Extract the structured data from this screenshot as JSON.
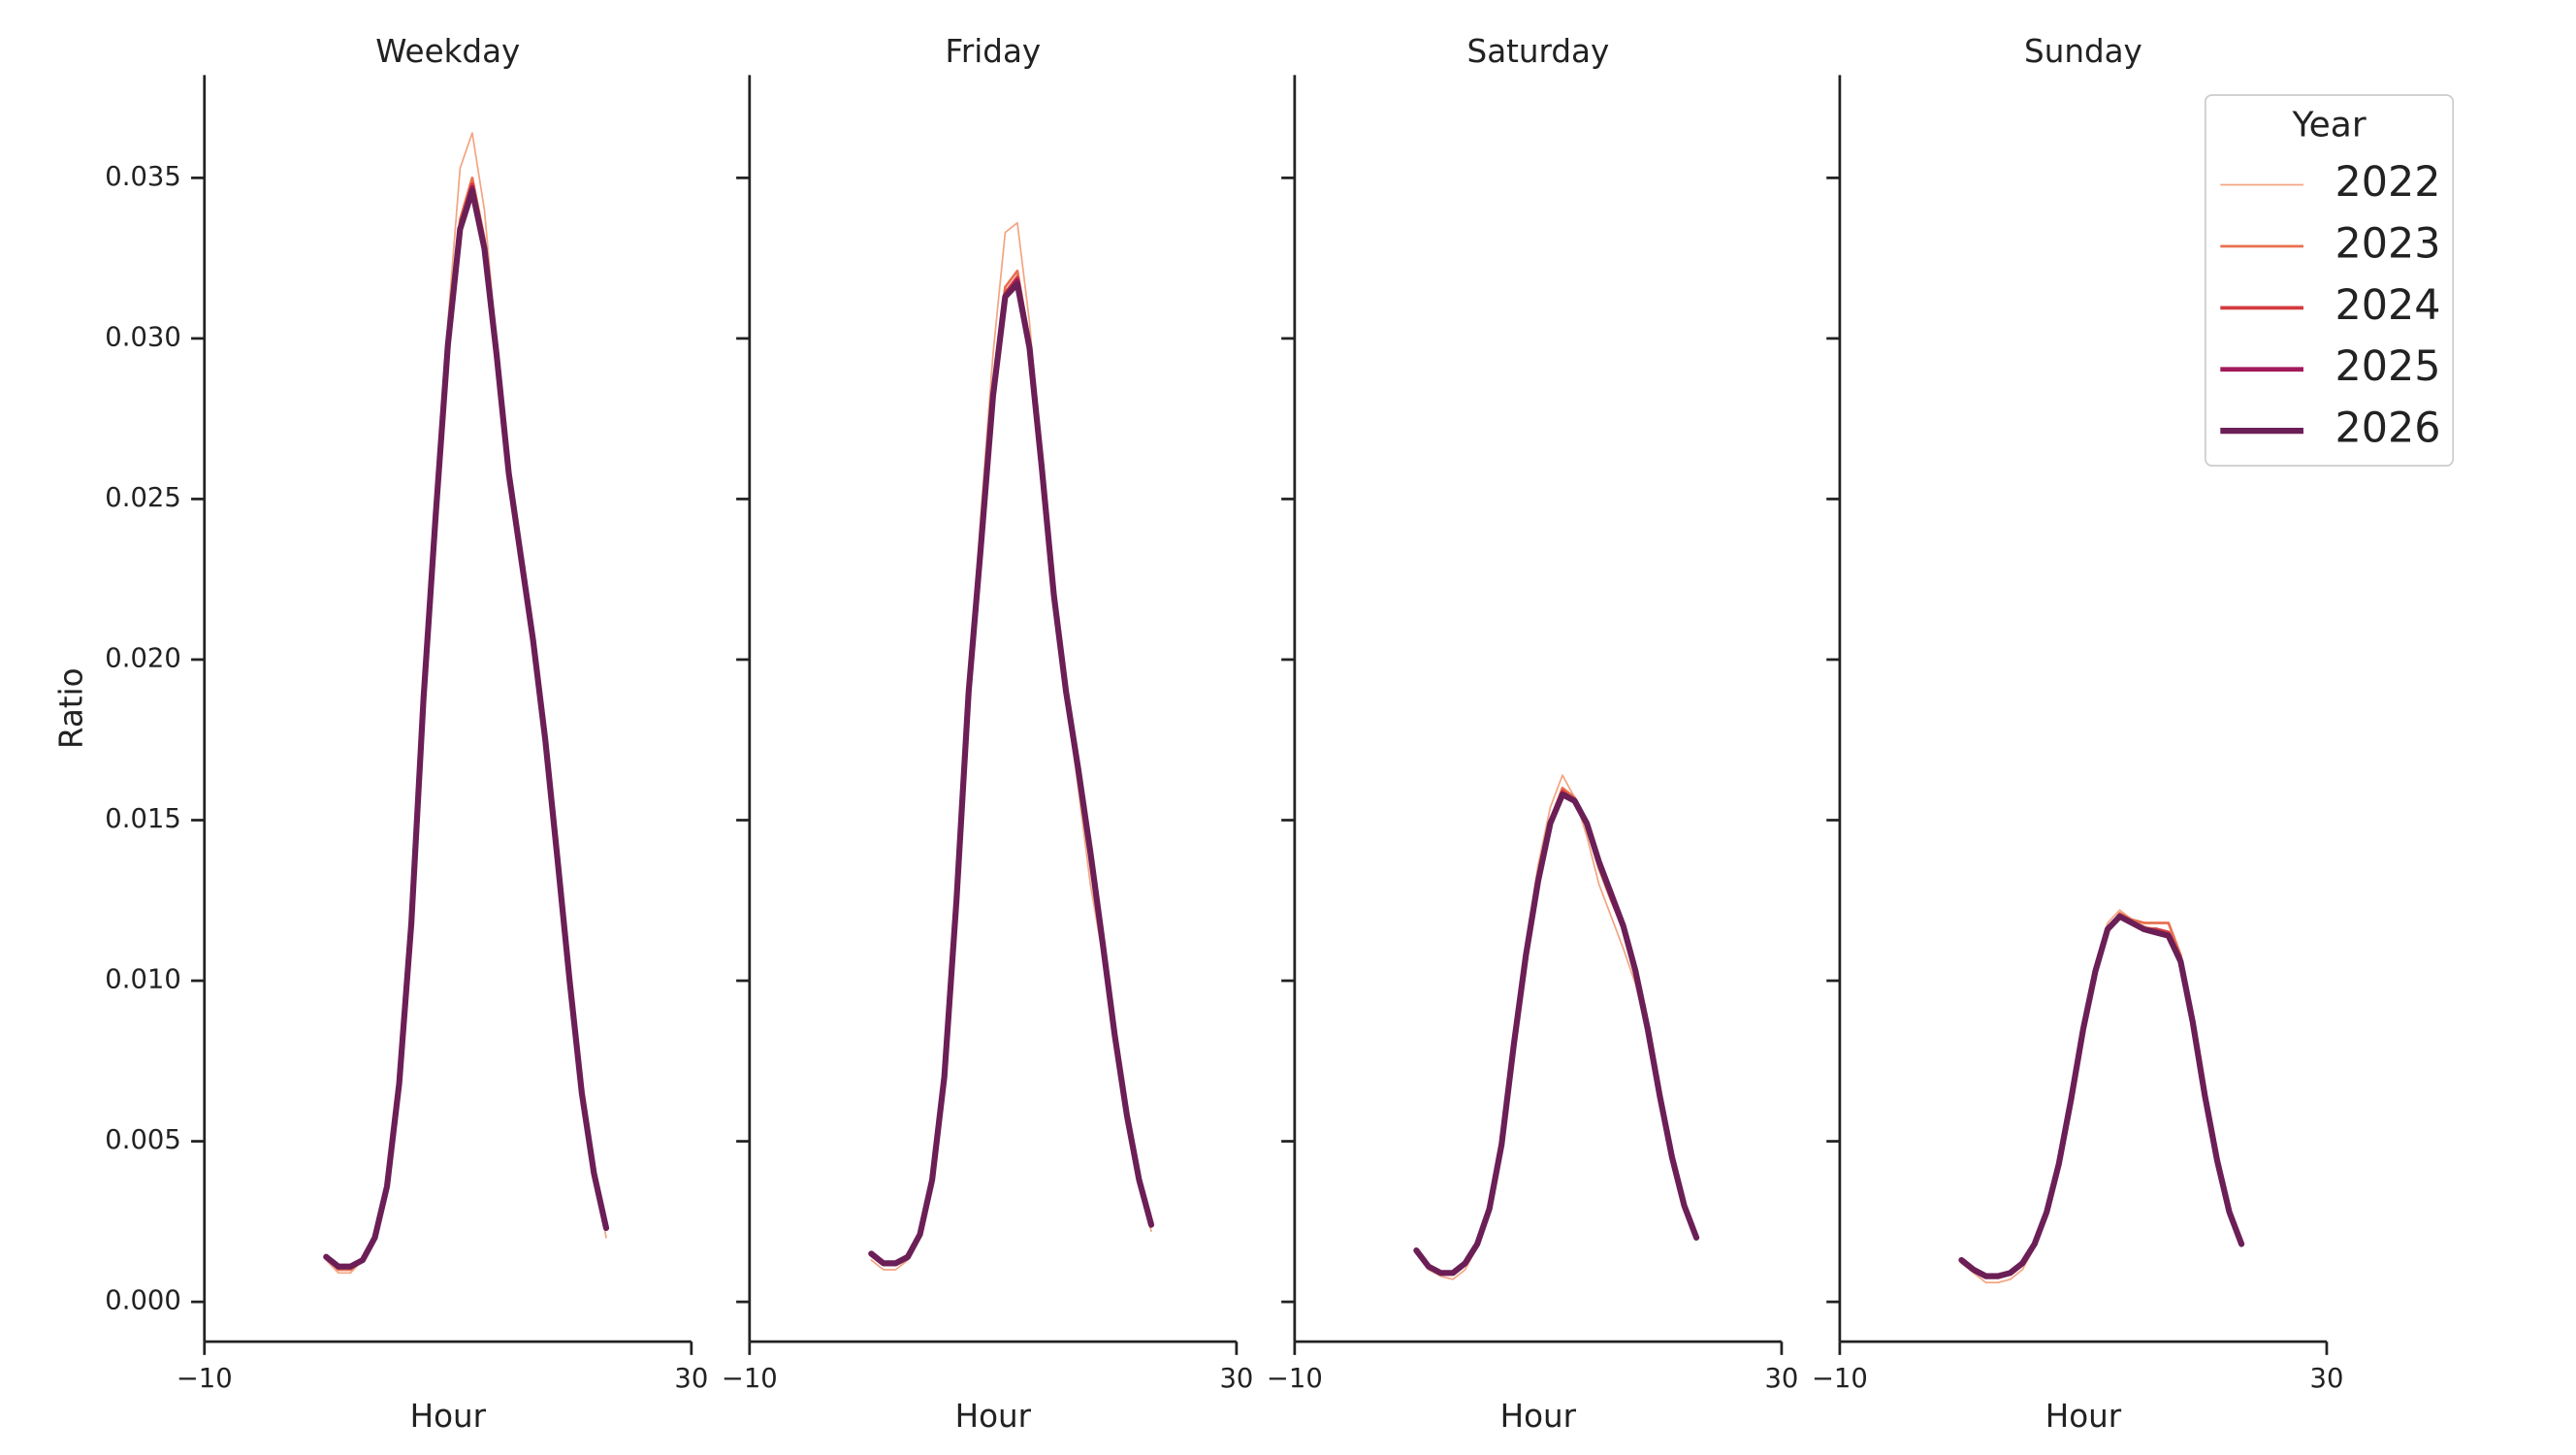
{
  "chart_data": [
    {
      "type": "line",
      "title": "Weekday",
      "xlabel": "Hour",
      "ylabel": "Ratio",
      "x": [
        0,
        1,
        2,
        3,
        4,
        5,
        6,
        7,
        8,
        9,
        10,
        11,
        12,
        13,
        14,
        15,
        16,
        17,
        18,
        19,
        20,
        21,
        22,
        23
      ],
      "xlim": [
        -10,
        30
      ],
      "xticks": [
        {
          "value": -10,
          "label": "−10"
        },
        30
      ],
      "ylim": [
        -0.00124,
        0.0382
      ],
      "yticks": [
        {
          "value": 0,
          "label": "0.000"
        },
        {
          "value": 0.005,
          "label": "0.005"
        },
        {
          "value": 0.01,
          "label": "0.010"
        },
        {
          "value": 0.015,
          "label": "0.015"
        },
        {
          "value": 0.02,
          "label": "0.020"
        },
        {
          "value": 0.025,
          "label": "0.025"
        },
        {
          "value": 0.03,
          "label": "0.030"
        },
        {
          "value": 0.035,
          "label": "0.035"
        }
      ],
      "series": [
        {
          "name": "2022",
          "color": "#f3a582",
          "values": [
            0.0013,
            0.0009,
            0.0009,
            0.0013,
            0.0019,
            0.0035,
            0.0067,
            0.0117,
            0.0187,
            0.025,
            0.0305,
            0.0353,
            0.0364,
            0.034,
            0.0298,
            0.0258,
            0.0232,
            0.0206,
            0.0175,
            0.0138,
            0.01,
            0.0065,
            0.004,
            0.002
          ]
        },
        {
          "name": "2023",
          "color": "#e8704e",
          "values": [
            0.0014,
            0.001,
            0.001,
            0.0013,
            0.002,
            0.0036,
            0.0068,
            0.0118,
            0.0188,
            0.0247,
            0.0299,
            0.0337,
            0.035,
            0.0331,
            0.0296,
            0.0258,
            0.0232,
            0.0206,
            0.0175,
            0.0138,
            0.01,
            0.0065,
            0.004,
            0.0023
          ]
        },
        {
          "name": "2024",
          "color": "#d33a3f",
          "values": [
            0.0014,
            0.0011,
            0.0011,
            0.0013,
            0.002,
            0.0036,
            0.0068,
            0.0118,
            0.0188,
            0.0246,
            0.0298,
            0.0335,
            0.0348,
            0.0329,
            0.0295,
            0.0258,
            0.0232,
            0.0206,
            0.0175,
            0.0138,
            0.01,
            0.0065,
            0.004,
            0.0023
          ]
        },
        {
          "name": "2025",
          "color": "#a2195b",
          "values": [
            0.0014,
            0.0011,
            0.0011,
            0.0013,
            0.002,
            0.0036,
            0.0068,
            0.0118,
            0.0188,
            0.0245,
            0.0298,
            0.0334,
            0.0347,
            0.0328,
            0.0295,
            0.0258,
            0.0232,
            0.0206,
            0.0175,
            0.0138,
            0.01,
            0.0065,
            0.004,
            0.0023
          ]
        },
        {
          "name": "2026",
          "color": "#6b1f56",
          "values": [
            0.0014,
            0.0011,
            0.0011,
            0.0013,
            0.002,
            0.0036,
            0.0068,
            0.0118,
            0.0188,
            0.0245,
            0.0298,
            0.0334,
            0.0346,
            0.0328,
            0.0295,
            0.0258,
            0.0232,
            0.0206,
            0.0175,
            0.0138,
            0.01,
            0.0065,
            0.004,
            0.0023
          ]
        }
      ]
    },
    {
      "type": "line",
      "title": "Friday",
      "xlabel": "Hour",
      "x": [
        0,
        1,
        2,
        3,
        4,
        5,
        6,
        7,
        8,
        9,
        10,
        11,
        12,
        13,
        14,
        15,
        16,
        17,
        18,
        19,
        20,
        21,
        22,
        23
      ],
      "xlim": [
        -10,
        30
      ],
      "xticks": [
        {
          "value": -10,
          "label": "−10"
        },
        30
      ],
      "series": [
        {
          "name": "2022",
          "color": "#f3a582",
          "values": [
            0.0013,
            0.001,
            0.001,
            0.0013,
            0.002,
            0.0037,
            0.0069,
            0.0124,
            0.0192,
            0.0245,
            0.0295,
            0.0333,
            0.0336,
            0.0305,
            0.0262,
            0.022,
            0.0188,
            0.016,
            0.013,
            0.0108,
            0.0082,
            0.0057,
            0.0037,
            0.0022
          ]
        },
        {
          "name": "2023",
          "color": "#e8704e",
          "values": [
            0.0015,
            0.0012,
            0.0012,
            0.0014,
            0.0021,
            0.0038,
            0.007,
            0.0125,
            0.019,
            0.0236,
            0.0284,
            0.0316,
            0.0321,
            0.0299,
            0.026,
            0.022,
            0.019,
            0.0165,
            0.0138,
            0.0111,
            0.0083,
            0.0058,
            0.0038,
            0.0024
          ]
        },
        {
          "name": "2024",
          "color": "#d33a3f",
          "values": [
            0.0015,
            0.0012,
            0.0012,
            0.0014,
            0.0021,
            0.0038,
            0.007,
            0.0125,
            0.019,
            0.0235,
            0.0283,
            0.0314,
            0.0319,
            0.0298,
            0.026,
            0.022,
            0.019,
            0.0166,
            0.014,
            0.0112,
            0.0083,
            0.0058,
            0.0038,
            0.0024
          ]
        },
        {
          "name": "2025",
          "color": "#a2195b",
          "values": [
            0.0015,
            0.0012,
            0.0012,
            0.0014,
            0.0021,
            0.0038,
            0.007,
            0.0125,
            0.019,
            0.0235,
            0.0282,
            0.0313,
            0.0318,
            0.0297,
            0.026,
            0.022,
            0.019,
            0.0166,
            0.014,
            0.0112,
            0.0083,
            0.0058,
            0.0038,
            0.0024
          ]
        },
        {
          "name": "2026",
          "color": "#6b1f56",
          "values": [
            0.0015,
            0.0012,
            0.0012,
            0.0014,
            0.0021,
            0.0038,
            0.007,
            0.0125,
            0.019,
            0.0235,
            0.0282,
            0.0313,
            0.0317,
            0.0297,
            0.026,
            0.022,
            0.019,
            0.0166,
            0.014,
            0.0112,
            0.0083,
            0.0058,
            0.0038,
            0.0024
          ]
        }
      ]
    },
    {
      "type": "line",
      "title": "Saturday",
      "xlabel": "Hour",
      "x": [
        0,
        1,
        2,
        3,
        4,
        5,
        6,
        7,
        8,
        9,
        10,
        11,
        12,
        13,
        14,
        15,
        16,
        17,
        18,
        19,
        20,
        21,
        22,
        23
      ],
      "xlim": [
        -10,
        30
      ],
      "xticks": [
        {
          "value": -10,
          "label": "−10"
        },
        30
      ],
      "series": [
        {
          "name": "2022",
          "color": "#f3a582",
          "values": [
            0.0015,
            0.001,
            0.0008,
            0.0007,
            0.001,
            0.0017,
            0.0029,
            0.005,
            0.0082,
            0.0112,
            0.0136,
            0.0154,
            0.0164,
            0.0157,
            0.0145,
            0.013,
            0.012,
            0.011,
            0.0099,
            0.0083,
            0.0063,
            0.0044,
            0.003,
            0.002
          ]
        },
        {
          "name": "2023",
          "color": "#e8704e",
          "values": [
            0.0016,
            0.0011,
            0.0009,
            0.0009,
            0.0012,
            0.0018,
            0.0029,
            0.0049,
            0.008,
            0.0109,
            0.0132,
            0.015,
            0.016,
            0.0157,
            0.0148,
            0.0135,
            0.0125,
            0.0116,
            0.0102,
            0.0085,
            0.0064,
            0.0045,
            0.003,
            0.002
          ]
        },
        {
          "name": "2024",
          "color": "#d33a3f",
          "values": [
            0.0016,
            0.0011,
            0.0009,
            0.0009,
            0.0012,
            0.0018,
            0.0029,
            0.0049,
            0.008,
            0.0108,
            0.0131,
            0.0149,
            0.0159,
            0.0156,
            0.0149,
            0.0137,
            0.0127,
            0.0117,
            0.0103,
            0.0085,
            0.0064,
            0.0045,
            0.003,
            0.002
          ]
        },
        {
          "name": "2025",
          "color": "#a2195b",
          "values": [
            0.0016,
            0.0011,
            0.0009,
            0.0009,
            0.0012,
            0.0018,
            0.0029,
            0.0049,
            0.008,
            0.0108,
            0.0131,
            0.0149,
            0.0158,
            0.0156,
            0.0149,
            0.0137,
            0.0127,
            0.0117,
            0.0103,
            0.0085,
            0.0064,
            0.0045,
            0.003,
            0.002
          ]
        },
        {
          "name": "2026",
          "color": "#6b1f56",
          "values": [
            0.0016,
            0.0011,
            0.0009,
            0.0009,
            0.0012,
            0.0018,
            0.0029,
            0.0049,
            0.008,
            0.0108,
            0.0131,
            0.0149,
            0.0158,
            0.0156,
            0.0149,
            0.0137,
            0.0127,
            0.0117,
            0.0103,
            0.0085,
            0.0064,
            0.0045,
            0.003,
            0.002
          ]
        }
      ]
    },
    {
      "type": "line",
      "title": "Sunday",
      "xlabel": "Hour",
      "legend_title": "Year",
      "legend": "upper right",
      "x": [
        0,
        1,
        2,
        3,
        4,
        5,
        6,
        7,
        8,
        9,
        10,
        11,
        12,
        13,
        14,
        15,
        16,
        17,
        18,
        19,
        20,
        21,
        22,
        23
      ],
      "xlim": [
        -10,
        30
      ],
      "xticks": [
        {
          "value": -10,
          "label": "−10"
        },
        30
      ],
      "series": [
        {
          "name": "2022",
          "color": "#f3a582",
          "values": [
            0.0012,
            0.0009,
            0.0006,
            0.0006,
            0.0007,
            0.001,
            0.0017,
            0.0027,
            0.0042,
            0.0062,
            0.0085,
            0.0104,
            0.0118,
            0.0122,
            0.0119,
            0.0117,
            0.0116,
            0.0115,
            0.0107,
            0.0088,
            0.0065,
            0.0045,
            0.0029,
            0.0018
          ]
        },
        {
          "name": "2023",
          "color": "#e8704e",
          "values": [
            0.0013,
            0.001,
            0.0008,
            0.0008,
            0.0009,
            0.0012,
            0.0018,
            0.0028,
            0.0043,
            0.0063,
            0.0085,
            0.0103,
            0.0116,
            0.0121,
            0.0119,
            0.0118,
            0.0118,
            0.0118,
            0.0108,
            0.0088,
            0.0065,
            0.0044,
            0.0028,
            0.0018
          ]
        },
        {
          "name": "2024",
          "color": "#d33a3f",
          "values": [
            0.0013,
            0.001,
            0.0008,
            0.0008,
            0.0009,
            0.0012,
            0.0018,
            0.0028,
            0.0043,
            0.0063,
            0.0085,
            0.0103,
            0.0116,
            0.012,
            0.0118,
            0.0116,
            0.0116,
            0.0115,
            0.0107,
            0.0087,
            0.0064,
            0.0044,
            0.0028,
            0.0018
          ]
        },
        {
          "name": "2025",
          "color": "#a2195b",
          "values": [
            0.0013,
            0.001,
            0.0008,
            0.0008,
            0.0009,
            0.0012,
            0.0018,
            0.0028,
            0.0043,
            0.0063,
            0.0085,
            0.0103,
            0.0116,
            0.012,
            0.0118,
            0.0116,
            0.0115,
            0.0114,
            0.0106,
            0.0087,
            0.0064,
            0.0044,
            0.0028,
            0.0018
          ]
        },
        {
          "name": "2026",
          "color": "#6b1f56",
          "values": [
            0.0013,
            0.001,
            0.0008,
            0.0008,
            0.0009,
            0.0012,
            0.0018,
            0.0028,
            0.0043,
            0.0063,
            0.0085,
            0.0103,
            0.0116,
            0.012,
            0.0118,
            0.0116,
            0.0115,
            0.0114,
            0.0106,
            0.0087,
            0.0064,
            0.0044,
            0.0028,
            0.0018
          ]
        }
      ]
    }
  ]
}
